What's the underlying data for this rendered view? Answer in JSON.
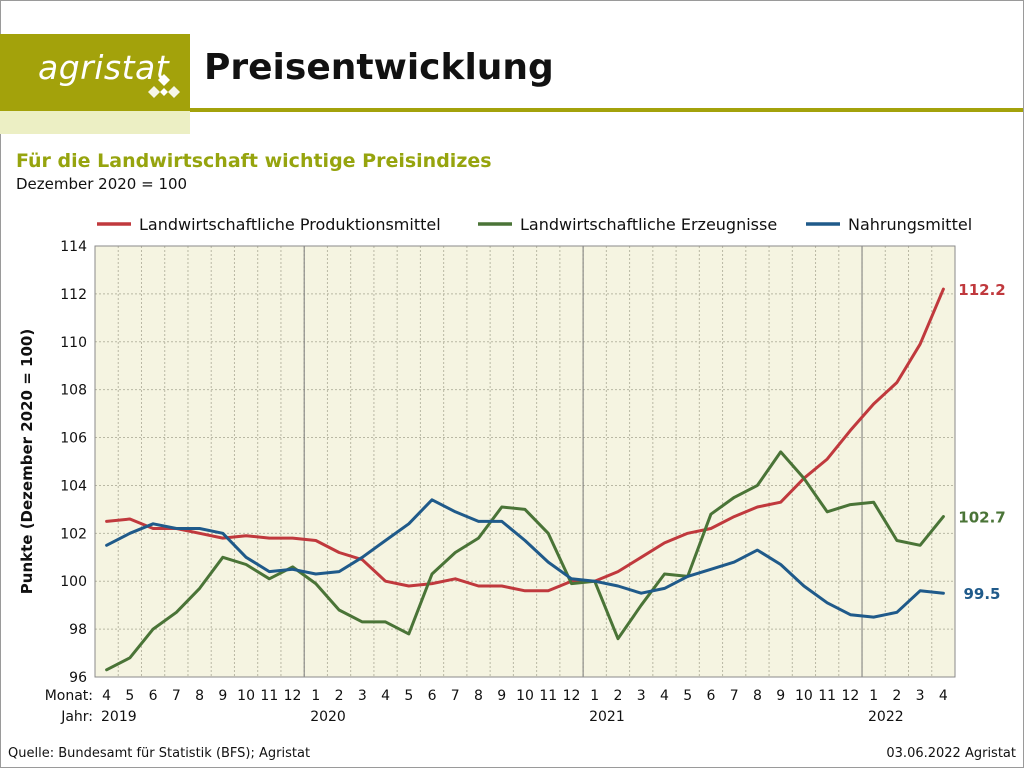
{
  "header": {
    "logo_text": "agristat",
    "title": "Preisentwicklung"
  },
  "chart_data": {
    "type": "line",
    "title": "Für die Landwirtschaft wichtige Preisindizes",
    "subtitle": "Dezember 2020 = 100",
    "ylabel": "Punkte (Dezember 2020 = 100)",
    "ylim": [
      96,
      114
    ],
    "yticks": [
      96,
      98,
      100,
      102,
      104,
      106,
      108,
      110,
      112,
      114
    ],
    "grid": true,
    "legend_position": "top",
    "x_row_label_month": "Monat:",
    "x_row_label_year": "Jahr:",
    "months": [
      "4",
      "5",
      "6",
      "7",
      "8",
      "9",
      "10",
      "11",
      "12",
      "1",
      "2",
      "3",
      "4",
      "5",
      "6",
      "7",
      "8",
      "9",
      "10",
      "11",
      "12",
      "1",
      "2",
      "3",
      "4",
      "5",
      "6",
      "7",
      "8",
      "9",
      "10",
      "11",
      "12",
      "1",
      "2",
      "3",
      "4"
    ],
    "year_labels": [
      {
        "label": "2019",
        "month_index": 0
      },
      {
        "label": "2020",
        "month_index": 9
      },
      {
        "label": "2021",
        "month_index": 21
      },
      {
        "label": "2022",
        "month_index": 33
      }
    ],
    "series": [
      {
        "name": "Landwirtschaftliche Produktionsmittel",
        "color": "#c0393d",
        "values": [
          102.5,
          102.6,
          102.2,
          102.2,
          102.0,
          101.8,
          101.9,
          101.8,
          101.8,
          101.7,
          101.2,
          100.9,
          100.0,
          99.8,
          99.9,
          100.1,
          99.8,
          99.8,
          99.6,
          99.6,
          100.0,
          100.0,
          100.4,
          101.0,
          101.6,
          102.0,
          102.2,
          102.7,
          103.1,
          103.3,
          104.3,
          105.1,
          106.3,
          107.4,
          108.3,
          109.9,
          112.2
        ],
        "end_label": "112.2"
      },
      {
        "name": "Landwirtschaftliche Erzeugnisse",
        "color": "#4a7437",
        "values": [
          96.3,
          96.8,
          98.0,
          98.7,
          99.7,
          101.0,
          100.7,
          100.1,
          100.6,
          99.9,
          98.8,
          98.3,
          98.3,
          97.8,
          100.3,
          101.2,
          101.8,
          103.1,
          103.0,
          102.0,
          99.9,
          100.0,
          97.6,
          99.0,
          100.3,
          100.2,
          102.8,
          103.5,
          104.0,
          105.4,
          104.3,
          102.9,
          103.2,
          103.3,
          101.7,
          101.5,
          102.7
        ],
        "end_label": "102.7"
      },
      {
        "name": "Nahrungsmittel",
        "color": "#1f5a8a",
        "values": [
          101.5,
          102.0,
          102.4,
          102.2,
          102.2,
          102.0,
          101.0,
          100.4,
          100.5,
          100.3,
          100.4,
          101.0,
          101.7,
          102.4,
          103.4,
          102.9,
          102.5,
          102.5,
          101.7,
          100.8,
          100.1,
          100.0,
          99.8,
          99.5,
          99.7,
          100.2,
          100.5,
          100.8,
          101.3,
          100.7,
          99.8,
          99.1,
          98.6,
          98.5,
          98.7,
          99.6,
          99.5
        ],
        "end_label": "99.5"
      }
    ]
  },
  "footer": {
    "source": "Quelle: Bundesamt für Statistik (BFS); Agristat",
    "date": "03.06.2022 Agristat"
  }
}
